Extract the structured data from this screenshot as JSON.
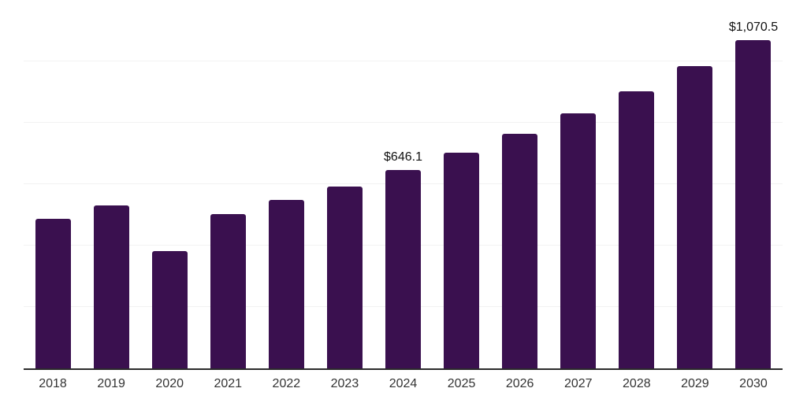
{
  "chart_data": {
    "type": "bar",
    "title": "",
    "xlabel": "",
    "ylabel": "",
    "categories": [
      "2018",
      "2019",
      "2020",
      "2021",
      "2022",
      "2023",
      "2024",
      "2025",
      "2026",
      "2027",
      "2028",
      "2029",
      "2030"
    ],
    "values": [
      488,
      531,
      381,
      503,
      549,
      593,
      646.1,
      703,
      764,
      832,
      902,
      984,
      1070.5
    ],
    "data_labels": [
      "",
      "",
      "",
      "",
      "",
      "",
      "$646.1",
      "",
      "",
      "",
      "",
      "",
      "$1,070.5"
    ],
    "ylim": [
      0,
      1200
    ],
    "gridline_interval": 200,
    "grid": "horizontal",
    "legend_position": "none",
    "colors": {
      "bar": "#3a104f",
      "gridline": "#f2f2f2",
      "axis": "#2b2b2b",
      "tick_label": "#333333",
      "data_label": "#111111",
      "background": "#ffffff"
    }
  }
}
